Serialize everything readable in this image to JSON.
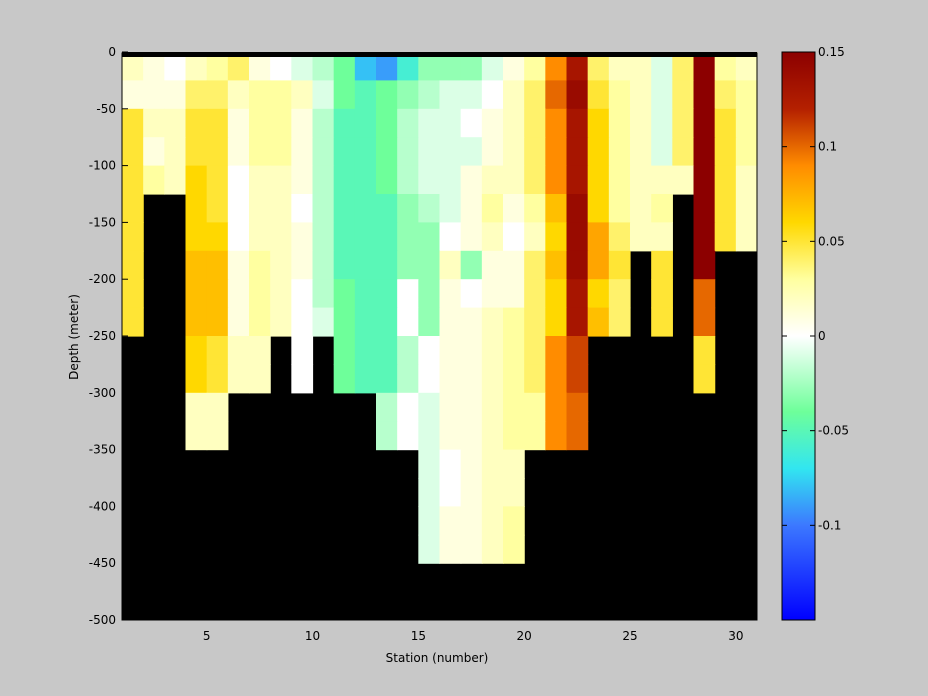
{
  "chart_data": {
    "type": "heatmap",
    "title": "",
    "xlabel": "Station (number)",
    "ylabel": "Depth (meter)",
    "xlim": [
      1,
      31
    ],
    "ylim": [
      -500,
      0
    ],
    "xticks": [
      5,
      10,
      15,
      20,
      25,
      30
    ],
    "yticks": [
      0,
      -50,
      -100,
      -150,
      -200,
      -250,
      -300,
      -350,
      -400,
      -450,
      -500
    ],
    "stations": [
      1,
      2,
      3,
      4,
      5,
      6,
      7,
      8,
      9,
      10,
      11,
      12,
      13,
      14,
      15,
      16,
      17,
      18,
      19,
      20,
      21,
      22,
      23,
      24,
      25,
      26,
      27,
      28,
      29,
      30
    ],
    "depth_bins_m": [
      0,
      -25,
      -50,
      -75,
      -100,
      -125,
      -150,
      -175,
      -200,
      -225,
      -250,
      -275,
      -300,
      -325,
      -350,
      -375,
      -400,
      -425,
      -450,
      -475
    ],
    "max_depth_m": [
      -200,
      -200,
      -100,
      -300,
      -300,
      -250,
      -250,
      -200,
      -250,
      -200,
      -250,
      -250,
      -300,
      -300,
      -400,
      -400,
      -400,
      -400,
      -400,
      -300,
      -300,
      -300,
      -200,
      -150,
      -200,
      -150,
      -100,
      -250,
      -150,
      -125
    ],
    "values": [
      [
        0.02,
        0.01,
        0.0,
        0.02,
        0.03,
        0.04,
        0.01,
        0.0,
        -0.01,
        -0.02,
        -0.04,
        -0.08,
        -0.09,
        -0.06,
        -0.03,
        -0.03,
        -0.03,
        -0.01,
        0.01,
        0.03,
        0.09,
        0.13,
        0.04,
        0.02,
        0.02,
        -0.01,
        0.04,
        0.15,
        0.03,
        0.02
      ],
      [
        0.01,
        0.01,
        0.01,
        0.04,
        0.04,
        0.02,
        0.03,
        0.03,
        0.02,
        -0.01,
        -0.04,
        -0.05,
        -0.04,
        -0.03,
        -0.02,
        -0.01,
        -0.01,
        0.0,
        0.02,
        0.04,
        0.1,
        0.14,
        0.05,
        0.03,
        0.02,
        -0.01,
        0.04,
        0.15,
        0.04,
        0.03
      ],
      [
        0.05,
        0.02,
        0.02,
        0.05,
        0.05,
        0.01,
        0.03,
        0.03,
        0.01,
        -0.02,
        -0.05,
        -0.05,
        -0.04,
        -0.02,
        -0.01,
        -0.01,
        0.0,
        0.01,
        0.02,
        0.04,
        0.09,
        0.13,
        0.06,
        0.03,
        0.02,
        -0.01,
        0.04,
        0.15,
        0.05,
        0.03
      ],
      [
        0.05,
        0.01,
        0.02,
        0.05,
        0.05,
        0.01,
        0.03,
        0.03,
        0.01,
        -0.02,
        -0.05,
        -0.05,
        -0.04,
        -0.02,
        -0.01,
        -0.01,
        -0.01,
        0.01,
        0.02,
        0.04,
        0.09,
        0.13,
        0.06,
        0.03,
        0.02,
        -0.01,
        0.04,
        0.15,
        0.05,
        0.03
      ],
      [
        0.05,
        0.03,
        0.02,
        0.06,
        0.05,
        0.0,
        0.02,
        0.02,
        0.01,
        -0.02,
        -0.05,
        -0.05,
        -0.04,
        -0.02,
        -0.01,
        -0.01,
        0.01,
        0.02,
        0.02,
        0.04,
        0.09,
        0.13,
        0.06,
        0.03,
        0.02,
        0.02,
        0.02,
        0.15,
        0.05,
        0.02
      ],
      [
        0.05,
        null,
        null,
        0.06,
        0.05,
        0.0,
        0.02,
        0.02,
        0.0,
        -0.02,
        -0.05,
        -0.05,
        -0.05,
        -0.03,
        -0.02,
        -0.01,
        0.01,
        0.03,
        0.01,
        0.03,
        0.07,
        0.14,
        0.06,
        0.03,
        0.02,
        0.03,
        null,
        0.15,
        0.05,
        0.02
      ],
      [
        0.05,
        null,
        null,
        0.06,
        0.06,
        0.0,
        0.02,
        0.02,
        0.01,
        -0.02,
        -0.05,
        -0.05,
        -0.05,
        -0.03,
        -0.03,
        0.0,
        0.01,
        0.02,
        0.0,
        0.02,
        0.06,
        0.14,
        0.08,
        0.04,
        0.02,
        0.02,
        null,
        0.15,
        0.05,
        0.02
      ],
      [
        0.05,
        null,
        null,
        0.07,
        0.07,
        0.01,
        0.03,
        0.02,
        0.01,
        -0.02,
        -0.05,
        -0.05,
        -0.05,
        -0.03,
        -0.03,
        0.02,
        -0.03,
        0.01,
        0.01,
        0.04,
        0.07,
        0.14,
        0.08,
        0.05,
        null,
        0.05,
        null,
        0.15,
        null,
        null
      ],
      [
        0.05,
        null,
        null,
        0.07,
        0.07,
        0.01,
        0.03,
        0.02,
        0.0,
        -0.02,
        -0.04,
        -0.05,
        -0.05,
        0.0,
        -0.03,
        0.01,
        0.0,
        0.01,
        0.01,
        0.04,
        0.06,
        0.13,
        0.06,
        0.04,
        null,
        0.05,
        null,
        0.1,
        null,
        null
      ],
      [
        0.05,
        null,
        null,
        0.07,
        0.07,
        0.01,
        0.03,
        0.02,
        0.0,
        -0.01,
        -0.04,
        -0.05,
        -0.05,
        0.0,
        -0.03,
        0.01,
        0.01,
        0.02,
        0.03,
        0.04,
        0.06,
        0.13,
        0.07,
        0.04,
        null,
        0.05,
        null,
        0.1,
        null,
        null
      ],
      [
        null,
        null,
        null,
        0.06,
        0.05,
        0.02,
        0.02,
        null,
        0.0,
        null,
        -0.04,
        -0.05,
        -0.05,
        -0.02,
        0.0,
        0.01,
        0.01,
        0.02,
        0.03,
        0.04,
        0.09,
        0.11,
        null,
        null,
        null,
        null,
        null,
        0.05,
        null,
        null
      ],
      [
        null,
        null,
        null,
        0.06,
        0.05,
        0.02,
        0.02,
        null,
        0.0,
        null,
        -0.04,
        -0.05,
        -0.05,
        -0.02,
        0.0,
        0.01,
        0.01,
        0.02,
        0.03,
        0.04,
        0.09,
        0.11,
        null,
        null,
        null,
        null,
        null,
        0.05,
        null,
        null
      ],
      [
        null,
        null,
        null,
        0.02,
        0.02,
        null,
        null,
        null,
        null,
        null,
        null,
        null,
        -0.02,
        0.0,
        -0.01,
        0.01,
        0.01,
        0.02,
        0.03,
        0.03,
        0.09,
        0.1,
        null,
        null,
        null,
        null,
        null,
        null,
        null,
        null
      ],
      [
        null,
        null,
        null,
        0.02,
        0.02,
        null,
        null,
        null,
        null,
        null,
        null,
        null,
        -0.02,
        0.0,
        -0.01,
        0.01,
        0.01,
        0.02,
        0.03,
        0.03,
        0.09,
        0.1,
        null,
        null,
        null,
        null,
        null,
        null,
        null,
        null
      ],
      [
        null,
        null,
        null,
        null,
        null,
        null,
        null,
        null,
        null,
        null,
        null,
        null,
        null,
        null,
        -0.01,
        0.0,
        0.01,
        0.02,
        0.02,
        null,
        null,
        null,
        null,
        null,
        null,
        null,
        null,
        null,
        null,
        null
      ],
      [
        null,
        null,
        null,
        null,
        null,
        null,
        null,
        null,
        null,
        null,
        null,
        null,
        null,
        null,
        -0.01,
        0.0,
        0.01,
        0.02,
        0.02,
        null,
        null,
        null,
        null,
        null,
        null,
        null,
        null,
        null,
        null,
        null
      ],
      [
        null,
        null,
        null,
        null,
        null,
        null,
        null,
        null,
        null,
        null,
        null,
        null,
        null,
        null,
        -0.01,
        0.01,
        0.01,
        0.02,
        0.03,
        null,
        null,
        null,
        null,
        null,
        null,
        null,
        null,
        null,
        null,
        null
      ],
      [
        null,
        null,
        null,
        null,
        null,
        null,
        null,
        null,
        null,
        null,
        null,
        null,
        null,
        null,
        -0.01,
        0.01,
        0.01,
        0.02,
        0.03,
        null,
        null,
        null,
        null,
        null,
        null,
        null,
        null,
        null,
        null,
        null
      ],
      [
        null,
        null,
        null,
        null,
        null,
        null,
        null,
        null,
        null,
        null,
        null,
        null,
        null,
        null,
        null,
        null,
        null,
        null,
        null,
        null,
        null,
        null,
        null,
        null,
        null,
        null,
        null,
        null,
        null,
        null
      ],
      [
        null,
        null,
        null,
        null,
        null,
        null,
        null,
        null,
        null,
        null,
        null,
        null,
        null,
        null,
        null,
        null,
        null,
        null,
        null,
        null,
        null,
        null,
        null,
        null,
        null,
        null,
        null,
        null,
        null,
        null
      ]
    ],
    "colorbar": {
      "clim": [
        -0.15,
        0.15
      ],
      "ticks": [
        0.15,
        0.1,
        0.05,
        0,
        -0.05,
        -0.1
      ],
      "tick_labels": [
        "0.15",
        "0.1",
        "0.05",
        "0",
        "-0.05",
        "-0.1"
      ],
      "colormap_stops": [
        {
          "v": -0.15,
          "c": "#0000ff"
        },
        {
          "v": -0.1,
          "c": "#3c78ff"
        },
        {
          "v": -0.07,
          "c": "#32e6f0"
        },
        {
          "v": -0.04,
          "c": "#6eff9a"
        },
        {
          "v": 0.0,
          "c": "#ffffff"
        },
        {
          "v": 0.03,
          "c": "#ffffa0"
        },
        {
          "v": 0.06,
          "c": "#ffd800"
        },
        {
          "v": 0.09,
          "c": "#ff8c00"
        },
        {
          "v": 0.12,
          "c": "#b42000"
        },
        {
          "v": 0.15,
          "c": "#8c0000"
        }
      ]
    },
    "land_color": "#000000",
    "background_color": "#c8c8c8"
  }
}
